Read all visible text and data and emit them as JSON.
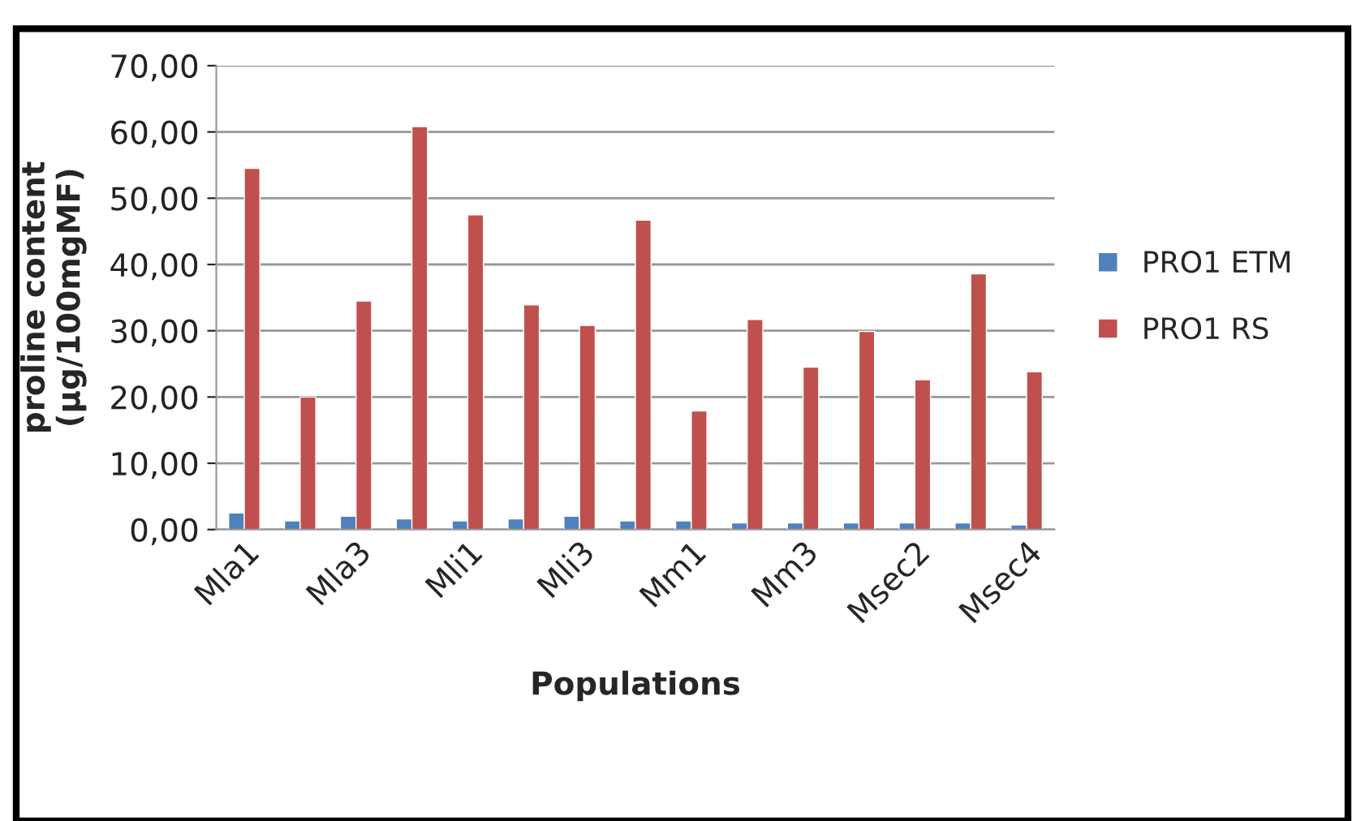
{
  "chart_data": {
    "type": "bar",
    "xlabel": "Populations",
    "ylabel": "proline content\n(µg/100mgMF)",
    "categories": [
      "Mla1",
      null,
      "Mla3",
      null,
      "Mli1",
      null,
      "Mli3",
      null,
      "Mm1",
      null,
      "Mm3",
      null,
      "Msec2",
      null,
      "Msec4"
    ],
    "series": [
      {
        "name": "PRO1 ETM",
        "color": "#4f81bd",
        "values": [
          2.5,
          1.3,
          2.0,
          1.6,
          1.3,
          1.6,
          2.0,
          1.3,
          1.3,
          1.0,
          1.0,
          1.0,
          1.0,
          1.0,
          0.7
        ]
      },
      {
        "name": "PRO1 RS",
        "color": "#c0504d",
        "values": [
          54.5,
          20.0,
          34.5,
          60.8,
          47.5,
          33.9,
          30.8,
          46.7,
          17.9,
          31.7,
          24.5,
          29.9,
          22.6,
          38.6,
          23.8
        ]
      }
    ],
    "ylim": [
      0,
      70
    ],
    "yticks": [
      {
        "value": 0,
        "label": "0,00"
      },
      {
        "value": 10,
        "label": "10,00"
      },
      {
        "value": 20,
        "label": "20,00"
      },
      {
        "value": 30,
        "label": "30,00"
      },
      {
        "value": 40,
        "label": "40,00"
      },
      {
        "value": 50,
        "label": "50,00"
      },
      {
        "value": 60,
        "label": "60,00"
      },
      {
        "value": 70,
        "label": "70,00"
      }
    ],
    "grid": "y",
    "legend": "right"
  }
}
